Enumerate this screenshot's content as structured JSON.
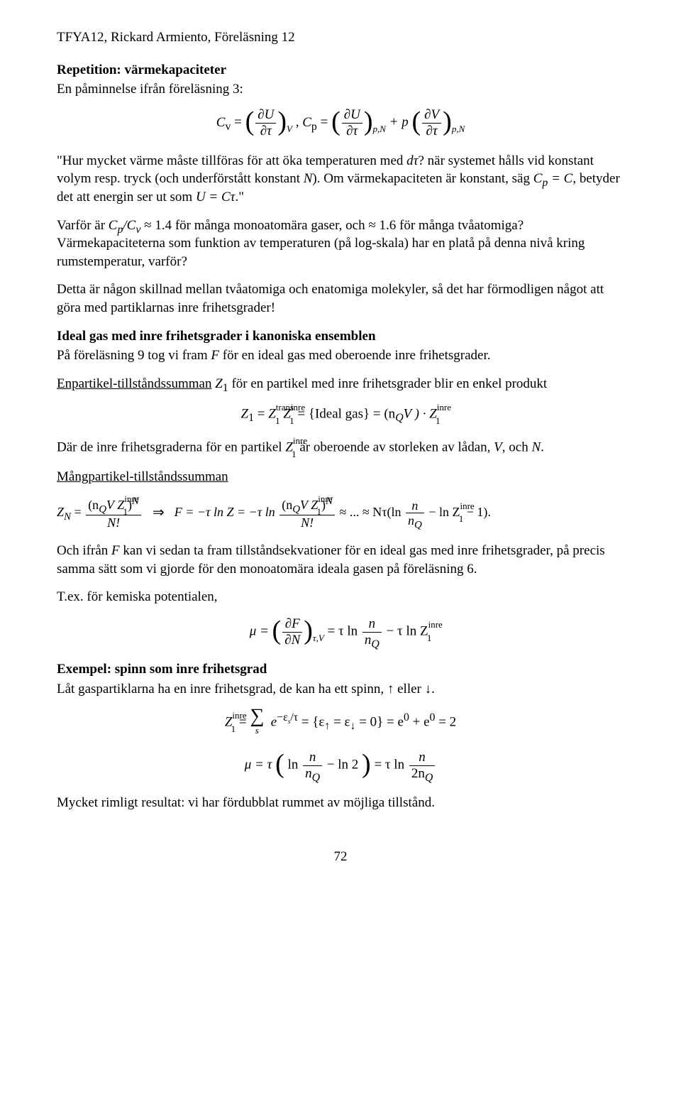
{
  "header": "TFYA12, Rickard Armiento, Föreläsning 12",
  "sec1": {
    "title": "Repetition: värmekapaciteter",
    "intro": "En påminnelse ifrån föreläsning 3:",
    "eq1": {
      "left_lhs": "C",
      "left_sub": "v",
      "eq": " = ",
      "du": "∂U",
      "dtau": "∂τ",
      "sub_v": "V",
      "comma": ",   ",
      "right_lhs": "C",
      "right_sub": "p",
      "plus_p": " + p ",
      "dV": "∂V",
      "sub_pn": "p,N"
    },
    "p1_a": "\"Hur mycket värme måste tillföras för att öka temperaturen med ",
    "p1_dtau": "dτ",
    "p1_b": "? när systemet hålls vid konstant volym resp. tryck (och underförstått konstant ",
    "p1_N": "N",
    "p1_c": "). Om värmekapaciteten är konstant, säg ",
    "p1_cp": "C",
    "p1_cp_sub": "p",
    "p1_eqC": " = C",
    "p1_d": ", betyder det att energin ser ut som ",
    "p1_U": "U = Cτ",
    "p1_e": ".\"",
    "p2_a": "Varför är ",
    "p2_cpcv": "C",
    "p2_cpcv_subp": "p",
    "p2_slash": "/C",
    "p2_cpcv_subv": "v",
    "p2_b": " ≈ 1.4 för många monoatomära gaser, och ≈ 1.6 för många tvåatomiga? Värmekapaciteterna som funktion av temperaturen (på log-skala) har en platå på denna nivå kring rumstemperatur, varför?",
    "p3": "Detta är någon skillnad mellan tvåatomiga och enatomiga molekyler, så det har förmodligen något att göra med partiklarnas inre frihetsgrader!"
  },
  "sec2": {
    "title": "Ideal gas med inre frihetsgrader i kanoniska ensemblen",
    "intro_a": "På föreläsning 9 tog vi fram ",
    "intro_F": "F",
    "intro_b": " för en ideal gas med oberoende inre frihetsgrader.",
    "under1_a": "Enpartikel-tillståndssumman",
    "under1_post_a": " ",
    "under1_Z1": "Z",
    "under1_sub1": "1",
    "under1_post_b": " för en partikel med inre frihetsgrader blir en enkel produkt",
    "eq2": {
      "Z1": "Z",
      "s1": "1",
      "eq": " = ",
      "Zt": "Z",
      "sup_trans": "trans",
      "sub_t1": "1",
      "Zi": "Z",
      "sup_inre": "inre",
      "sub_i1": "1",
      "brace_l": " = {",
      "ideal": "Ideal gas",
      "brace_r": "} = (n",
      "nQ_sub": "Q",
      "V": "V ) · ",
      "Zi2": "Z"
    },
    "post_eq2_a": "Där de inre frihetsgraderna för en partikel ",
    "post_eq2_Z": "Z",
    "post_eq2_sup": "inre",
    "post_eq2_sub": "1",
    "post_eq2_b": " är oberoende av storleken av lådan, ",
    "post_eq2_V": "V",
    "post_eq2_c": ", och ",
    "post_eq2_N": "N",
    "post_eq2_d": ".",
    "under2": "Mångpartikel-tillståndssumman",
    "eq3": {
      "ZN": "Z",
      "subN": "N",
      "eq1": " = ",
      "num1_a": "(n",
      "nQ": "Q",
      "VZ": "V Z",
      "inre": "inre",
      "s1": "1",
      "close": ")",
      "supN": "N",
      "den1": "N!",
      "arrow": "⇒",
      "F": "F = −τ ln Z = −τ ln ",
      "approx": " ≈ ... ≈ Nτ(ln ",
      "n": "n",
      "over": "n",
      "nQden": "Q",
      "tail": " − ln Z",
      "tail_inre": "inre",
      "tail_1": "1",
      "tail_m1": " − 1)."
    },
    "p_after_eq3_a": "Och ifrån ",
    "p_after_eq3_F": "F",
    "p_after_eq3_b": " kan vi sedan ta fram tillståndsekvationer för en ideal gas med inre frihetsgrader, på precis samma sätt som vi gjorde för den monoatomära ideala gasen på föreläsning 6.",
    "tex": "T.ex. för kemiska potentialen,",
    "eq4": {
      "mu": "μ = ",
      "dF": "∂F",
      "dN": "∂N",
      "sub_tv": "τ,V",
      "eq2": " = τ ln ",
      "n": "n",
      "nQ": "n",
      "Qs": "Q",
      "minus": " − τ ln Z",
      "inre": "inre",
      "s1": "1"
    }
  },
  "sec3": {
    "title": "Exempel: spinn som inre frihetsgrad",
    "intro": "Låt gaspartiklarna ha en inre frihetsgrad, de kan ha ett spinn, ↑ eller ↓.",
    "eq5": {
      "Z": "Z",
      "inre": "inre",
      "s1": "1",
      "eq": " = ",
      "sum": "∑",
      "s": "s",
      "exp": "e",
      "minus_es": "−ε",
      "es_sub": "s",
      "over_tau": "/τ",
      "braces": " = {ε",
      "up": "↑",
      "eqe": " = ε",
      "down": "↓",
      "eq0": " = 0} = e",
      "sup0a": "0",
      "plus": " + e",
      "sup0b": "0",
      "eq2": " = 2"
    },
    "eq6": {
      "mu": "μ = τ ",
      "lp": "(",
      "ln": "ln ",
      "n": "n",
      "nQ": "n",
      "Q": "Q",
      "minus_ln2": " − ln 2",
      "rp": ")",
      "eq": " = τ ln ",
      "n2": "n",
      "den2": "2n",
      "Q2": "Q"
    },
    "closing": "Mycket rimligt resultat: vi har fördubblat rummet av möjliga tillstånd."
  },
  "pagenum": "72"
}
